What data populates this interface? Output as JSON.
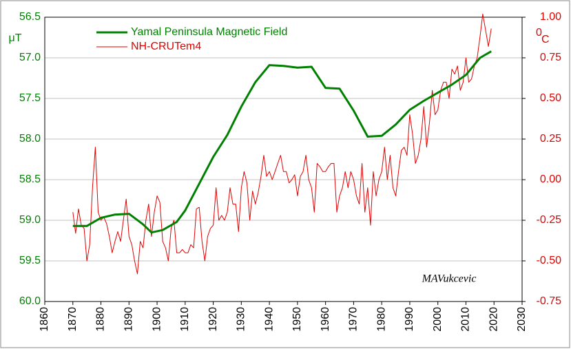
{
  "chart_data": {
    "type": "line",
    "ylabel": "μT",
    "y2label_sup": "0",
    "y2label": "C",
    "annotation": "MAVukcevic",
    "xlim": [
      1860,
      2030
    ],
    "xticks": [
      1860,
      1870,
      1880,
      1890,
      1900,
      1910,
      1920,
      1930,
      1940,
      1950,
      1960,
      1970,
      1980,
      1990,
      2000,
      2010,
      2020,
      2030
    ],
    "ylim": [
      60,
      56.5
    ],
    "yticks": [
      56.5,
      {
        "value": 57,
        "label": "57.0"
      },
      57.5,
      {
        "value": 58,
        "label": "58.0"
      },
      58.5,
      {
        "value": 59,
        "label": "59.0"
      },
      59.5,
      {
        "value": 60,
        "label": "60.0"
      }
    ],
    "y2lim": [
      -0.75,
      1
    ],
    "y2ticks": [
      {
        "value": 1,
        "label": "1.00"
      },
      0.75,
      {
        "value": 0.5,
        "label": "0.50"
      },
      0.25,
      {
        "value": 0,
        "label": "0.00"
      },
      -0.25,
      {
        "value": -0.5,
        "label": "-0.50"
      },
      -0.75
    ],
    "grid": true,
    "series": [
      {
        "name": "Yamal Peninsula Magnetic Field",
        "color": "#008000",
        "axis": "y",
        "x": [
          1870,
          1875,
          1880,
          1885,
          1890,
          1895,
          1898,
          1902,
          1907,
          1910,
          1915,
          1920,
          1925,
          1930,
          1935,
          1940,
          1945,
          1950,
          1955,
          1960,
          1965,
          1970,
          1975,
          1980,
          1985,
          1990,
          1995,
          2000,
          2005,
          2010,
          2015,
          2019
        ],
        "values": [
          59.07,
          59.07,
          58.97,
          58.93,
          58.92,
          59.05,
          59.15,
          59.12,
          59.02,
          58.88,
          58.55,
          58.22,
          57.95,
          57.6,
          57.3,
          57.09,
          57.1,
          57.12,
          57.11,
          57.37,
          57.38,
          57.65,
          57.97,
          57.96,
          57.82,
          57.64,
          57.53,
          57.43,
          57.33,
          57.21,
          57.0,
          56.92
        ]
      },
      {
        "name": "NH-CRUTem4",
        "color": "#e00000",
        "axis": "y2",
        "x": [
          1870,
          1871,
          1872,
          1873,
          1874,
          1875,
          1876,
          1877,
          1878,
          1879,
          1880,
          1881,
          1882,
          1883,
          1884,
          1885,
          1886,
          1887,
          1888,
          1889,
          1890,
          1891,
          1892,
          1893,
          1894,
          1895,
          1896,
          1897,
          1898,
          1899,
          1900,
          1901,
          1902,
          1903,
          1904,
          1905,
          1906,
          1907,
          1908,
          1909,
          1910,
          1911,
          1912,
          1913,
          1914,
          1915,
          1916,
          1917,
          1918,
          1919,
          1920,
          1921,
          1922,
          1923,
          1924,
          1925,
          1926,
          1927,
          1928,
          1929,
          1930,
          1931,
          1932,
          1933,
          1934,
          1935,
          1936,
          1937,
          1938,
          1939,
          1940,
          1941,
          1942,
          1943,
          1944,
          1945,
          1946,
          1947,
          1948,
          1949,
          1950,
          1951,
          1952,
          1953,
          1954,
          1955,
          1956,
          1957,
          1958,
          1959,
          1960,
          1961,
          1962,
          1963,
          1964,
          1965,
          1966,
          1967,
          1968,
          1969,
          1970,
          1971,
          1972,
          1973,
          1974,
          1975,
          1976,
          1977,
          1978,
          1979,
          1980,
          1981,
          1982,
          1983,
          1984,
          1985,
          1986,
          1987,
          1988,
          1989,
          1990,
          1991,
          1992,
          1993,
          1994,
          1995,
          1996,
          1997,
          1998,
          1999,
          2000,
          2001,
          2002,
          2003,
          2004,
          2005,
          2006,
          2007,
          2008,
          2009,
          2010,
          2011,
          2012,
          2013,
          2014,
          2015,
          2016,
          2017,
          2018,
          2019
        ],
        "values": [
          -0.2,
          -0.33,
          -0.18,
          -0.28,
          -0.3,
          -0.5,
          -0.4,
          -0.05,
          0.2,
          -0.2,
          -0.25,
          -0.23,
          -0.27,
          -0.35,
          -0.45,
          -0.38,
          -0.32,
          -0.38,
          -0.25,
          -0.12,
          -0.35,
          -0.4,
          -0.5,
          -0.58,
          -0.38,
          -0.42,
          -0.25,
          -0.15,
          -0.35,
          -0.2,
          -0.1,
          -0.14,
          -0.38,
          -0.42,
          -0.5,
          -0.3,
          -0.25,
          -0.45,
          -0.45,
          -0.43,
          -0.45,
          -0.45,
          -0.4,
          -0.42,
          -0.18,
          -0.17,
          -0.38,
          -0.5,
          -0.35,
          -0.3,
          -0.28,
          -0.05,
          -0.25,
          -0.22,
          -0.25,
          -0.2,
          -0.05,
          -0.15,
          -0.15,
          -0.32,
          -0.05,
          0.05,
          -0.02,
          -0.25,
          -0.07,
          -0.15,
          -0.08,
          0.02,
          0.15,
          0.02,
          0.05,
          0,
          0.05,
          0.1,
          0.15,
          0.05,
          0.05,
          -0.02,
          0,
          0.03,
          -0.1,
          0.02,
          0.05,
          0.15,
          0,
          -0.05,
          -0.2,
          0.1,
          0.08,
          0.05,
          0.05,
          0.08,
          0.1,
          0.1,
          -0.2,
          -0.1,
          -0.05,
          0.05,
          -0.05,
          0.05,
          0,
          -0.1,
          -0.15,
          0.1,
          -0.2,
          -0.05,
          -0.28,
          0.05,
          -0.1,
          0,
          0.05,
          0.2,
          0,
          0.15,
          -0.05,
          -0.1,
          0.05,
          0.18,
          0.2,
          0.15,
          0.4,
          0.28,
          0.1,
          0.15,
          0.25,
          0.45,
          0.2,
          0.35,
          0.55,
          0.4,
          0.43,
          0.55,
          0.6,
          0.6,
          0.5,
          0.68,
          0.65,
          0.7,
          0.55,
          0.6,
          0.75,
          0.6,
          0.62,
          0.7,
          0.75,
          0.88,
          1.02,
          0.92,
          0.82,
          0.93
        ]
      }
    ]
  }
}
